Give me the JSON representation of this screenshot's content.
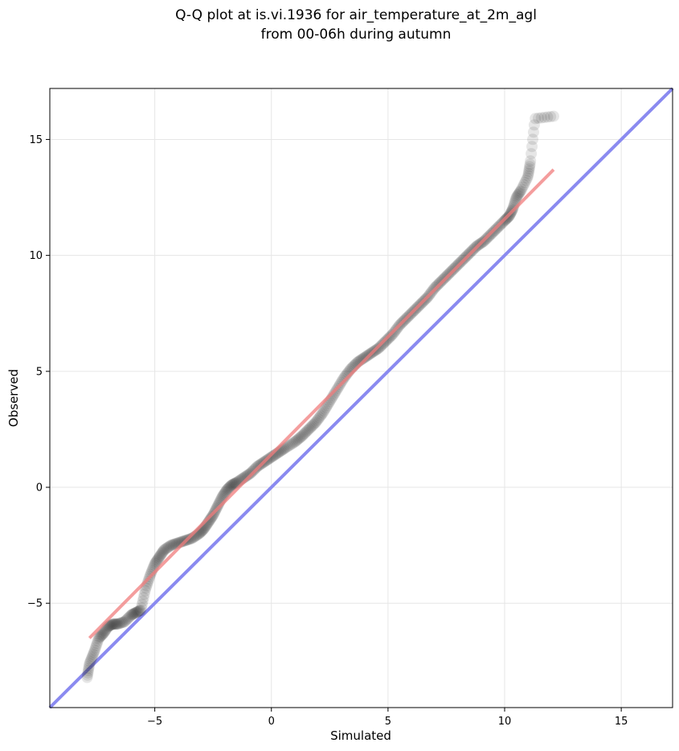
{
  "chart_data": {
    "type": "scatter",
    "title_lines": [
      "Q-Q plot at is.vi.1936 for air_temperature_at_2m_agl",
      "from 00-06h during autumn"
    ],
    "xlabel": "Simulated",
    "ylabel": "Observed",
    "xlim": [
      -9.5,
      17.2
    ],
    "ylim": [
      -9.5,
      17.2
    ],
    "xticks": [
      -5,
      0,
      5,
      10,
      15
    ],
    "yticks": [
      -5,
      0,
      5,
      10,
      15
    ],
    "xtick_labels": [
      "−5",
      "0",
      "5",
      "10",
      "15"
    ],
    "ytick_labels": [
      "−5",
      "0",
      "5",
      "10",
      "15"
    ],
    "grid": true,
    "colors": {
      "points": "#333333",
      "fit_line": "#f07c7c",
      "identity_line": "#8a8af0",
      "grid": "#e6e6e6"
    },
    "identity_line": {
      "x": [
        -9.5,
        17.2
      ],
      "y": [
        -9.5,
        17.2
      ]
    },
    "fit_line": {
      "x": [
        -7.8,
        12.1
      ],
      "y": [
        -6.5,
        13.7
      ]
    },
    "quantile_anchors": {
      "x": [
        -7.9,
        -7.8,
        -7.6,
        -7.4,
        -7.2,
        -7.0,
        -6.8,
        -6.6,
        -6.3,
        -6.0,
        -5.8,
        -5.6,
        -5.4,
        -5.2,
        -5.0,
        -4.8,
        -4.6,
        -4.3,
        -4.0,
        -3.7,
        -3.4,
        -3.1,
        -2.9,
        -2.7,
        -2.5,
        -2.3,
        -2.1,
        -1.9,
        -1.7,
        -1.5,
        -1.2,
        -0.9,
        -0.6,
        -0.3,
        0.0,
        0.3,
        0.6,
        1.0,
        1.3,
        1.6,
        1.9,
        2.2,
        2.5,
        2.8,
        3.1,
        3.4,
        3.7,
        4.0,
        4.3,
        4.6,
        4.9,
        5.2,
        5.5,
        5.8,
        6.1,
        6.4,
        6.7,
        7.0,
        7.3,
        7.6,
        7.9,
        8.2,
        8.5,
        8.8,
        9.1,
        9.4,
        9.7,
        10.0,
        10.2,
        10.35,
        10.5,
        10.7,
        11.0,
        11.1,
        11.3,
        12.1
      ],
      "y": [
        -8.2,
        -7.6,
        -7.1,
        -6.5,
        -6.3,
        -6.0,
        -5.9,
        -5.9,
        -5.8,
        -5.5,
        -5.4,
        -5.3,
        -4.4,
        -3.8,
        -3.3,
        -3.0,
        -2.7,
        -2.5,
        -2.4,
        -2.3,
        -2.2,
        -2.0,
        -1.8,
        -1.5,
        -1.2,
        -0.8,
        -0.4,
        -0.1,
        0.1,
        0.2,
        0.4,
        0.6,
        0.9,
        1.1,
        1.3,
        1.5,
        1.7,
        1.95,
        2.2,
        2.5,
        2.8,
        3.2,
        3.7,
        4.2,
        4.7,
        5.1,
        5.4,
        5.6,
        5.8,
        6.0,
        6.3,
        6.6,
        7.0,
        7.3,
        7.6,
        7.9,
        8.2,
        8.6,
        8.9,
        9.2,
        9.5,
        9.8,
        10.1,
        10.4,
        10.6,
        10.9,
        11.2,
        11.5,
        11.7,
        12.0,
        12.5,
        12.8,
        13.4,
        14.0,
        15.9,
        16.0
      ]
    },
    "num_points": 460
  }
}
